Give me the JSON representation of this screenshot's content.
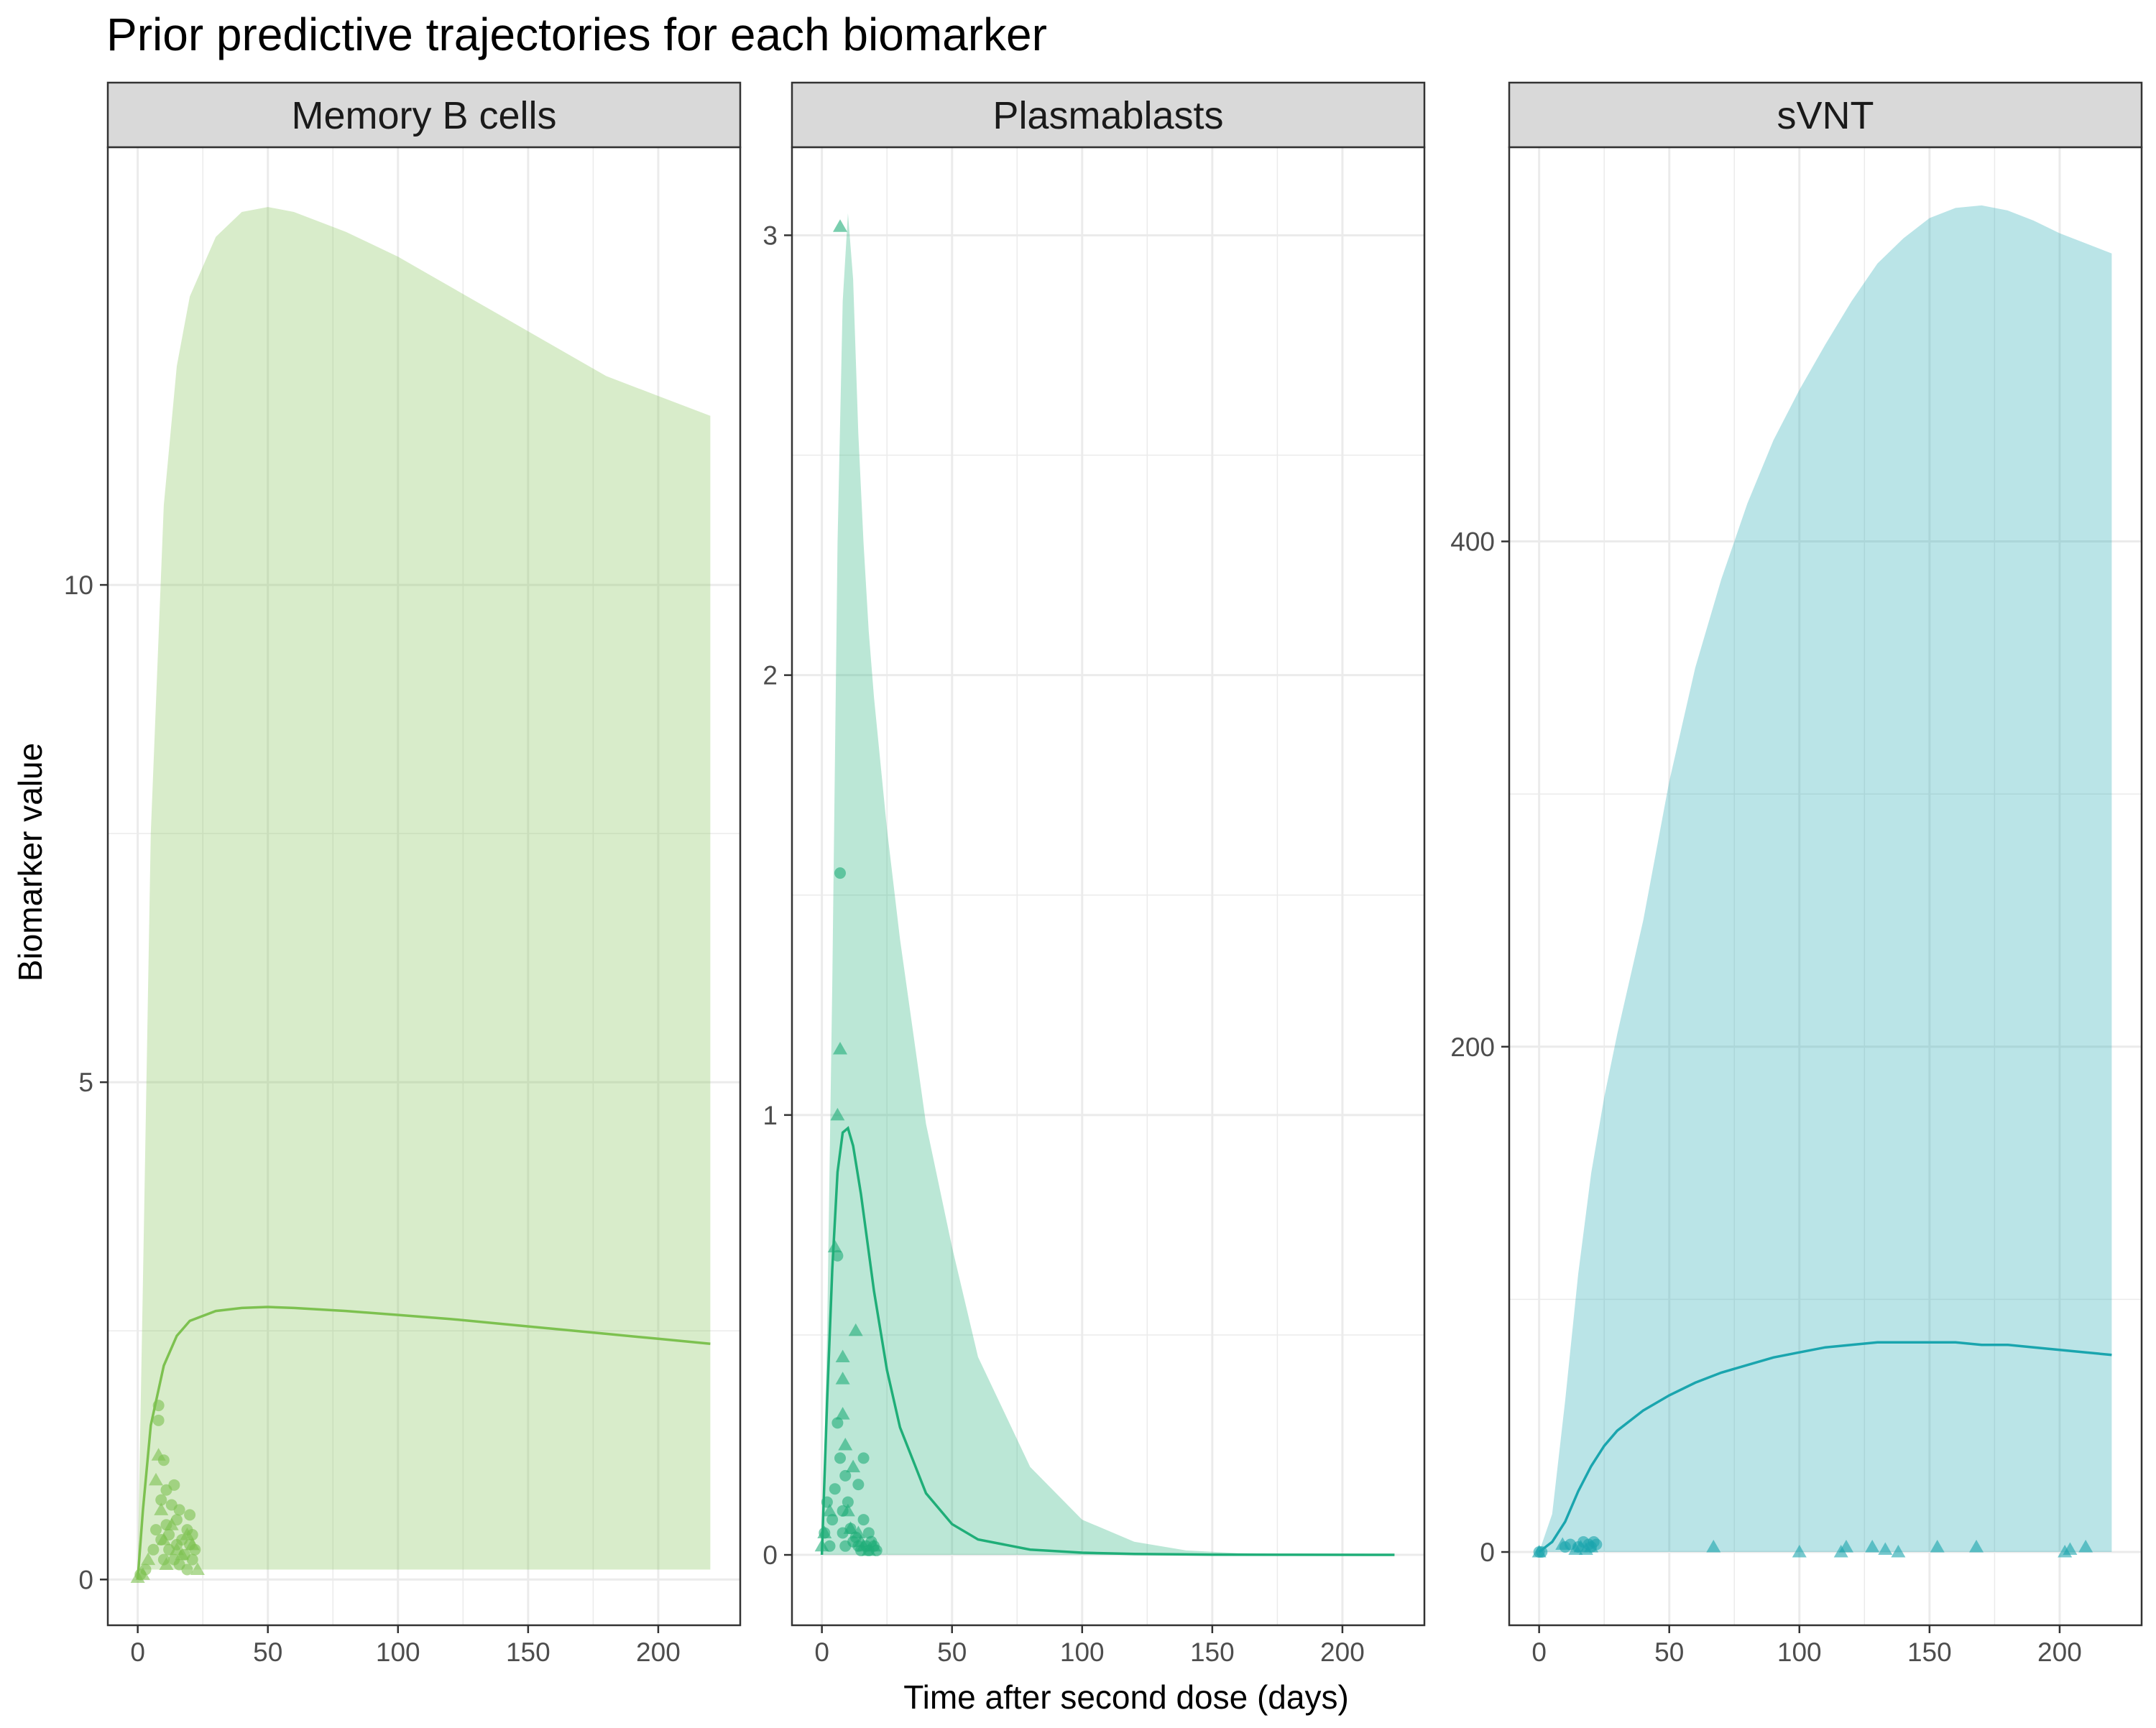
{
  "colors": {
    "memory_b": "#7dc150",
    "plasmablasts": "#1fae78",
    "svnt": "#1aa5ae",
    "strip_fill": "#d9d9d9",
    "grid": "#ebebeb",
    "panel_border": "#333333"
  },
  "chart_data": {
    "type": "area",
    "title": "Prior predictive trajectories for each biomarker",
    "xlabel": "Time after second dose (days)",
    "ylabel": "Biomarker value",
    "grid": true,
    "legend": "none",
    "facets": [
      {
        "strip": "Memory B cells",
        "color_key": "memory_b",
        "xlim": [
          -11.5,
          231.5
        ],
        "ylim": [
          -0.46,
          14.4
        ],
        "x_ticks": [
          0,
          50,
          100,
          150,
          200
        ],
        "x_tick_labels": [
          "0",
          "50",
          "100",
          "150",
          "200"
        ],
        "y_ticks": [
          0,
          5,
          10
        ],
        "y_tick_labels": [
          "0",
          "5",
          "10"
        ],
        "band": {
          "x": [
            0,
            2,
            5,
            10,
            15,
            20,
            30,
            40,
            50,
            60,
            80,
            100,
            120,
            140,
            160,
            180,
            200,
            220
          ],
          "lower": [
            0.1,
            0.1,
            0.1,
            0.1,
            0.1,
            0.1,
            0.1,
            0.1,
            0.1,
            0.1,
            0.1,
            0.1,
            0.1,
            0.1,
            0.1,
            0.1,
            0.1,
            0.1
          ],
          "upper": [
            0.1,
            3.0,
            7.5,
            10.8,
            12.2,
            12.9,
            13.5,
            13.75,
            13.8,
            13.75,
            13.55,
            13.3,
            13.0,
            12.7,
            12.4,
            12.1,
            11.9,
            11.7
          ]
        },
        "median": {
          "x": [
            0,
            2,
            5,
            10,
            15,
            20,
            30,
            40,
            50,
            60,
            80,
            100,
            120,
            140,
            160,
            180,
            200,
            220
          ],
          "y": [
            0.0,
            0.7,
            1.55,
            2.15,
            2.45,
            2.6,
            2.7,
            2.73,
            2.74,
            2.73,
            2.7,
            2.66,
            2.62,
            2.57,
            2.52,
            2.47,
            2.42,
            2.37
          ]
        },
        "points_circle": {
          "x": [
            1,
            3,
            6,
            7,
            8,
            8,
            9,
            9,
            10,
            10,
            11,
            11,
            12,
            12,
            13,
            14,
            14,
            15,
            15,
            16,
            16,
            17,
            18,
            19,
            19,
            20,
            20,
            21,
            21,
            22
          ],
          "y": [
            0.05,
            0.1,
            0.3,
            0.5,
            1.75,
            1.6,
            0.4,
            0.8,
            0.2,
            1.2,
            0.55,
            0.9,
            0.3,
            0.45,
            0.75,
            0.2,
            0.95,
            0.35,
            0.6,
            0.15,
            0.7,
            0.4,
            0.25,
            0.5,
            0.1,
            0.35,
            0.65,
            0.2,
            0.45,
            0.3
          ]
        },
        "points_triangle": {
          "x": [
            0,
            2,
            4,
            7,
            8,
            9,
            10,
            11,
            13,
            15,
            17,
            19,
            21,
            23
          ],
          "y": [
            0.02,
            0.05,
            0.2,
            1.0,
            1.25,
            0.7,
            0.4,
            0.15,
            0.55,
            0.3,
            0.25,
            0.45,
            0.35,
            0.1
          ]
        }
      },
      {
        "strip": "Plasmablasts",
        "color_key": "plasmablasts",
        "xlim": [
          -11.5,
          231.5
        ],
        "ylim": [
          -0.16,
          3.2
        ],
        "x_ticks": [
          0,
          50,
          100,
          150,
          200
        ],
        "x_tick_labels": [
          "0",
          "50",
          "100",
          "150",
          "200"
        ],
        "y_ticks": [
          0,
          1,
          2,
          3
        ],
        "y_tick_labels": [
          "0",
          "1",
          "2",
          "3"
        ],
        "band": {
          "x": [
            0,
            2,
            4,
            6,
            8,
            10,
            12,
            14,
            16,
            18,
            20,
            25,
            30,
            40,
            50,
            60,
            80,
            100,
            120,
            140,
            160,
            180,
            200,
            220
          ],
          "lower": [
            0,
            0,
            0,
            0,
            0,
            0,
            0,
            0,
            0,
            0,
            0,
            0,
            0,
            0,
            0,
            0,
            0,
            0,
            0,
            0,
            0,
            0,
            0,
            0
          ],
          "upper": [
            0,
            0.5,
            1.3,
            2.3,
            2.85,
            3.05,
            2.9,
            2.55,
            2.3,
            2.1,
            1.95,
            1.65,
            1.4,
            0.98,
            0.7,
            0.45,
            0.2,
            0.08,
            0.03,
            0.01,
            0.004,
            0.002,
            0.001,
            0.0005
          ]
        },
        "median": {
          "x": [
            0,
            2,
            4,
            6,
            8,
            10,
            12,
            15,
            20,
            25,
            30,
            40,
            50,
            60,
            80,
            100,
            120,
            150,
            180,
            220
          ],
          "y": [
            0.0,
            0.35,
            0.65,
            0.87,
            0.96,
            0.97,
            0.93,
            0.82,
            0.6,
            0.42,
            0.29,
            0.14,
            0.07,
            0.035,
            0.012,
            0.005,
            0.002,
            0.0005,
            0.0002,
            0.0001
          ]
        },
        "points_circle": {
          "x": [
            1,
            2,
            3,
            4,
            5,
            6,
            6,
            7,
            7,
            8,
            8,
            9,
            9,
            10,
            11,
            12,
            13,
            14,
            15,
            16,
            17,
            18,
            19,
            20,
            21,
            14,
            16,
            18
          ],
          "y": [
            0.05,
            0.12,
            0.02,
            0.08,
            0.15,
            0.68,
            0.3,
            1.55,
            0.22,
            0.1,
            0.05,
            0.18,
            0.02,
            0.12,
            0.06,
            0.03,
            0.04,
            0.02,
            0.01,
            0.22,
            0.02,
            0.01,
            0.03,
            0.02,
            0.01,
            0.16,
            0.08,
            0.05
          ]
        },
        "points_triangle": {
          "x": [
            0,
            1,
            3,
            5,
            6,
            7,
            7,
            8,
            8,
            8,
            9,
            10,
            11,
            12,
            13,
            14,
            15,
            16,
            18,
            20
          ],
          "y": [
            0.02,
            0.05,
            0.1,
            0.7,
            1.0,
            3.02,
            1.15,
            0.45,
            0.4,
            0.32,
            0.25,
            0.1,
            0.06,
            0.2,
            0.51,
            0.05,
            0.03,
            0.02,
            0.01,
            0.02
          ]
        }
      },
      {
        "strip": "sVNT",
        "color_key": "svnt",
        "xlim": [
          -11.5,
          231.5
        ],
        "ylim": [
          -29,
          556
        ],
        "x_ticks": [
          0,
          50,
          100,
          150,
          200
        ],
        "x_tick_labels": [
          "0",
          "50",
          "100",
          "150",
          "200"
        ],
        "y_ticks": [
          0,
          200,
          400
        ],
        "y_tick_labels": [
          "0",
          "200",
          "400"
        ],
        "band": {
          "x": [
            0,
            5,
            10,
            15,
            20,
            25,
            30,
            40,
            50,
            60,
            70,
            80,
            90,
            100,
            110,
            120,
            130,
            140,
            150,
            160,
            170,
            180,
            190,
            200,
            210,
            220
          ],
          "lower": [
            0,
            0,
            0,
            0,
            0,
            0,
            0,
            0,
            0,
            0,
            0,
            0,
            0,
            0,
            0,
            0,
            0,
            0,
            0,
            0,
            0,
            0,
            0,
            0,
            0,
            0
          ],
          "upper": [
            0,
            15,
            60,
            110,
            150,
            180,
            205,
            250,
            305,
            350,
            385,
            415,
            440,
            460,
            478,
            495,
            510,
            520,
            528,
            532,
            533,
            531,
            527,
            522,
            518,
            514
          ]
        },
        "median": {
          "x": [
            0,
            5,
            10,
            15,
            20,
            25,
            30,
            40,
            50,
            60,
            70,
            80,
            90,
            100,
            110,
            120,
            130,
            140,
            150,
            160,
            170,
            180,
            190,
            200,
            210,
            220
          ],
          "y": [
            0,
            4,
            12,
            24,
            34,
            42,
            48,
            56,
            62,
            67,
            71,
            74,
            77,
            79,
            81,
            82,
            83,
            83,
            83,
            83,
            82,
            82,
            81,
            80,
            79,
            78
          ]
        },
        "points_circle": {
          "x": [
            0,
            1,
            10,
            12,
            15,
            17,
            19,
            20,
            21,
            22
          ],
          "y": [
            0,
            0,
            2,
            3,
            2,
            4,
            3,
            2,
            4,
            3
          ]
        },
        "points_triangle": {
          "x": [
            0,
            9,
            14,
            16,
            18,
            20,
            67,
            100,
            116,
            118,
            128,
            133,
            138,
            153,
            168,
            202,
            204,
            210
          ],
          "y": [
            0,
            3,
            1,
            2,
            1,
            2,
            2,
            0,
            0,
            2,
            2,
            1,
            0,
            2,
            2,
            0,
            1,
            2
          ]
        }
      }
    ]
  }
}
